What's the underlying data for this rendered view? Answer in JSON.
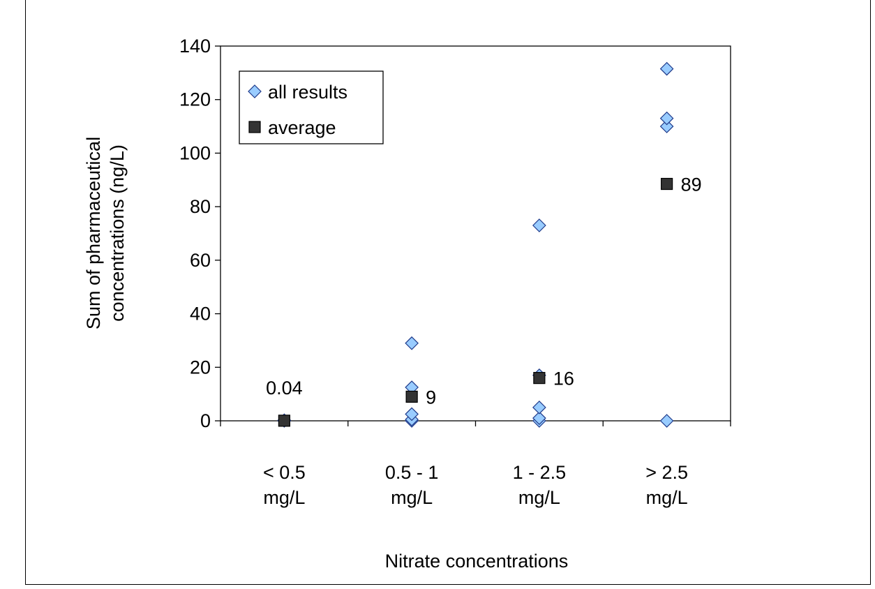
{
  "chart_data": {
    "type": "scatter",
    "title": "",
    "xlabel": "Nitrate concentrations",
    "ylabel": [
      "Sum of pharmaceutical",
      "concentrations (ng/L)"
    ],
    "categories": [
      [
        "< 0.5",
        "mg/L"
      ],
      [
        "0.5 - 1",
        "mg/L"
      ],
      [
        "1 - 2.5",
        "mg/L"
      ],
      [
        "> 2.5",
        "mg/L"
      ]
    ],
    "ylim": [
      0,
      140
    ],
    "yticks": [
      "0",
      "20",
      "40",
      "60",
      "80",
      "100",
      "120",
      "140"
    ],
    "grid": false,
    "legend_position": "top-left",
    "series": [
      {
        "name": "all results",
        "marker": "diamond",
        "color": "#99ccff",
        "points": [
          {
            "category": 0,
            "y": 0
          },
          {
            "category": 0,
            "y": 0.2
          },
          {
            "category": 1,
            "y": 0
          },
          {
            "category": 1,
            "y": 0.5
          },
          {
            "category": 1,
            "y": 2.5
          },
          {
            "category": 1,
            "y": 12.5
          },
          {
            "category": 1,
            "y": 29
          },
          {
            "category": 2,
            "y": 0
          },
          {
            "category": 2,
            "y": 1
          },
          {
            "category": 2,
            "y": 5
          },
          {
            "category": 2,
            "y": 17
          },
          {
            "category": 2,
            "y": 73
          },
          {
            "category": 3,
            "y": 0
          },
          {
            "category": 3,
            "y": 110
          },
          {
            "category": 3,
            "y": 113
          },
          {
            "category": 3,
            "y": 131.5
          }
        ]
      },
      {
        "name": "average",
        "marker": "square",
        "color": "#333333",
        "points": [
          {
            "category": 0,
            "y": 0.04,
            "label": "0.04"
          },
          {
            "category": 1,
            "y": 9,
            "label": "9"
          },
          {
            "category": 2,
            "y": 16,
            "label": "16"
          },
          {
            "category": 3,
            "y": 88.5,
            "label": "89"
          }
        ]
      }
    ]
  }
}
